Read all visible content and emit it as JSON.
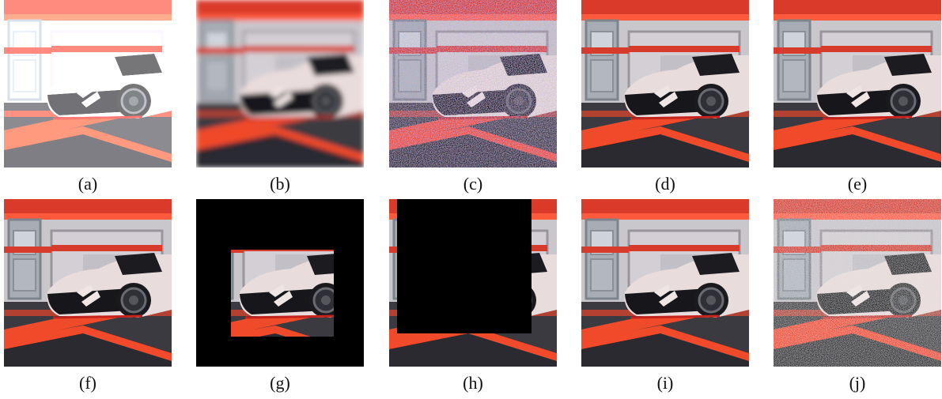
{
  "figure": {
    "panels": [
      {
        "label": "(a)",
        "variant": "overexposed"
      },
      {
        "label": "(b)",
        "variant": "blur"
      },
      {
        "label": "(c)",
        "variant": "color-noise"
      },
      {
        "label": "(d)",
        "variant": "clean"
      },
      {
        "label": "(e)",
        "variant": "clean"
      },
      {
        "label": "(f)",
        "variant": "clean"
      },
      {
        "label": "(g)",
        "variant": "center-crop-black-border"
      },
      {
        "label": "(h)",
        "variant": "black-occlusion-topleft"
      },
      {
        "label": "(i)",
        "variant": "clean"
      },
      {
        "label": "(j)",
        "variant": "grain-noise"
      }
    ]
  }
}
